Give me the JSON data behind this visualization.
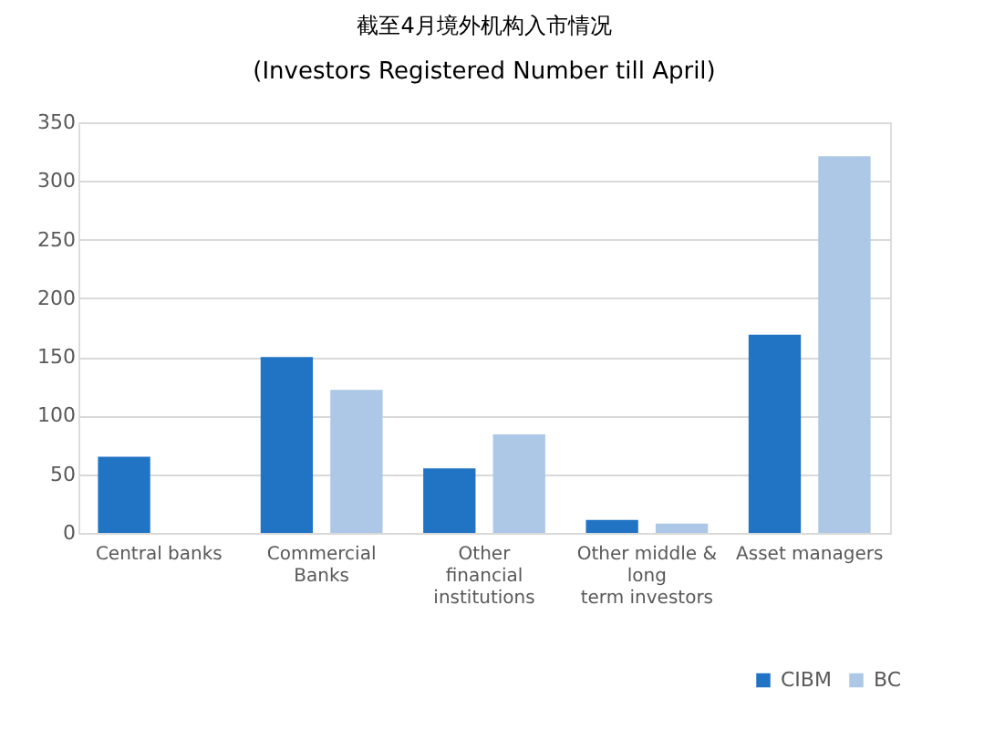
{
  "chart_data": {
    "type": "bar",
    "title": "截至4月境外机构入市情况",
    "subtitle": "(Investors Registered Number till April)",
    "categories": [
      "Central banks",
      "Commercial\nBanks",
      "Other\nfinancial\ninstitutions",
      "Other middle &\nlong\nterm investors",
      "Asset managers"
    ],
    "series": [
      {
        "name": "CIBM",
        "color": "#2173c4",
        "values": [
          65,
          150,
          55,
          11,
          169
        ]
      },
      {
        "name": "BC",
        "color": "#adc8e6",
        "values": [
          null,
          122,
          84,
          8,
          321
        ]
      }
    ],
    "ylim": [
      0,
      350
    ],
    "yticks": [
      0,
      50,
      100,
      150,
      200,
      250,
      300,
      350
    ],
    "grid": "y",
    "legend": "bottom right"
  }
}
